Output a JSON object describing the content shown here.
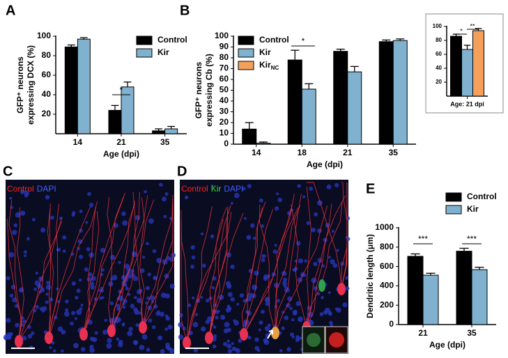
{
  "chart_data": [
    {
      "type": "bar",
      "panel": "A",
      "y_label": [
        "GFP⁺ neurons",
        "expressing DCX (%)"
      ],
      "x_label": "Age (dpi)",
      "categories": [
        "14",
        "21",
        "35"
      ],
      "series": [
        {
          "name": "Control",
          "color": "#000000",
          "values": [
            89,
            24,
            3
          ],
          "errors": [
            2,
            5,
            2
          ]
        },
        {
          "name": "Kir",
          "color": "#80b1cf",
          "values": [
            97,
            48,
            5
          ],
          "errors": [
            1.5,
            5,
            2.5
          ]
        }
      ],
      "ylim": [
        0,
        100
      ],
      "yticks": [
        20,
        40,
        60,
        80,
        100
      ],
      "annotations": [
        "*"
      ],
      "legend": "top-right"
    },
    {
      "type": "bar",
      "panel": "B",
      "y_label": [
        "GFP⁺ neurons",
        "expressing Cb (%)"
      ],
      "x_label": "Age (dpi)",
      "categories": [
        "14",
        "18",
        "21",
        "35"
      ],
      "series": [
        {
          "name": "Control",
          "color": "#000000",
          "values": [
            14,
            78,
            86,
            95
          ],
          "errors": [
            6,
            9,
            2,
            1.5
          ]
        },
        {
          "name": "Kir",
          "color": "#80b1cf",
          "values": [
            1,
            51,
            67,
            96
          ],
          "errors": [
            1,
            5,
            5,
            1.5
          ]
        },
        {
          "name": "Kir",
          "subscript": "NC",
          "color": "#f5a05a",
          "values": [
            null,
            null,
            null,
            null
          ],
          "errors": [
            null,
            null,
            null,
            null
          ]
        }
      ],
      "ylim": [
        0,
        100
      ],
      "yticks": [
        0,
        10,
        20,
        30,
        40,
        50,
        60,
        70,
        80,
        90,
        100
      ],
      "annotations": [
        "*"
      ],
      "legend": "top-left"
    },
    {
      "type": "bar",
      "x_label": "Age: 21 dpi",
      "categories": [
        null
      ],
      "series": [
        {
          "color": "#000000",
          "values": [
            86
          ],
          "errors": [
            3
          ]
        },
        {
          "color": "#80b1cf",
          "values": [
            67
          ],
          "errors": [
            6
          ]
        },
        {
          "color": "#f5a05a",
          "values": [
            94
          ],
          "errors": [
            3
          ]
        }
      ],
      "ylim": [
        0,
        100
      ],
      "yticks": [
        20,
        40,
        60,
        80,
        100
      ],
      "annotations": [
        "*",
        "**"
      ]
    },
    {
      "type": "bar",
      "panel": "E",
      "y_label": [
        "Dendritic length (μm)"
      ],
      "x_label": "Age (dpi)",
      "categories": [
        "21",
        "35"
      ],
      "series": [
        {
          "name": "Control",
          "color": "#000000",
          "values": [
            705,
            758
          ],
          "errors": [
            25,
            30
          ]
        },
        {
          "name": "Kir",
          "color": "#80b1cf",
          "values": [
            510,
            567
          ],
          "errors": [
            20,
            25
          ]
        }
      ],
      "ylim": [
        0,
        1000
      ],
      "yticks": [
        0,
        200,
        400,
        600,
        800,
        1000
      ],
      "annotations": [
        "***",
        "***"
      ],
      "legend": "top-right"
    }
  ],
  "images": [
    {
      "panel": "C",
      "stains": [
        {
          "text": "Control",
          "color": "#ff2020"
        },
        {
          "text": "DAPI",
          "color": "#4060ff"
        }
      ]
    },
    {
      "panel": "D",
      "stains": [
        {
          "text": "Control",
          "color": "#ff2020"
        },
        {
          "text": "Kir",
          "color": "#30e030"
        },
        {
          "text": "DAPI",
          "color": "#4060ff"
        }
      ]
    }
  ]
}
